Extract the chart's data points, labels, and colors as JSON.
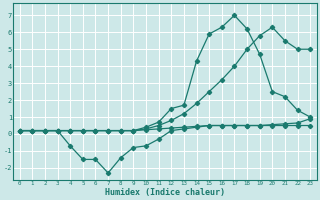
{
  "xlabel": "Humidex (Indice chaleur)",
  "bg_color": "#cde8e8",
  "grid_color": "#ffffff",
  "line_color": "#1a7a6e",
  "xlim": [
    -0.5,
    23.5
  ],
  "ylim": [
    -2.7,
    7.7
  ],
  "xticks": [
    0,
    1,
    2,
    3,
    4,
    5,
    6,
    7,
    8,
    9,
    10,
    11,
    12,
    13,
    14,
    15,
    16,
    17,
    18,
    19,
    20,
    21,
    22,
    23
  ],
  "yticks": [
    -2,
    -1,
    0,
    1,
    2,
    3,
    4,
    5,
    6,
    7
  ],
  "s1_x": [
    0,
    1,
    2,
    3,
    4,
    5,
    6,
    7,
    8,
    9,
    10,
    11,
    12,
    13,
    14,
    15,
    16,
    17,
    18,
    19,
    20,
    21,
    22,
    23
  ],
  "s1_y": [
    0.2,
    0.2,
    0.2,
    0.2,
    0.2,
    0.2,
    0.2,
    0.2,
    0.2,
    0.2,
    0.25,
    0.3,
    0.35,
    0.4,
    0.45,
    0.5,
    0.5,
    0.5,
    0.5,
    0.5,
    0.55,
    0.6,
    0.65,
    0.9
  ],
  "s2_x": [
    0,
    1,
    2,
    3,
    4,
    5,
    6,
    7,
    8,
    9,
    10,
    11,
    12,
    13,
    14,
    15,
    16,
    17,
    18,
    19,
    20,
    21,
    22,
    23
  ],
  "s2_y": [
    0.2,
    0.2,
    0.2,
    0.2,
    0.2,
    0.2,
    0.2,
    0.2,
    0.2,
    0.2,
    0.3,
    0.5,
    0.8,
    1.2,
    1.8,
    2.5,
    3.2,
    4.0,
    5.0,
    5.8,
    6.3,
    5.5,
    5.0,
    5.0
  ],
  "s3_x": [
    0,
    1,
    2,
    3,
    4,
    5,
    6,
    7,
    8,
    9,
    10,
    11,
    12,
    13,
    14,
    15,
    16,
    17,
    18,
    19,
    20,
    21,
    22,
    23
  ],
  "s3_y": [
    0.2,
    0.2,
    0.2,
    0.2,
    -0.7,
    -1.5,
    -1.5,
    -2.3,
    -1.4,
    -0.8,
    -0.7,
    -0.3,
    0.2,
    0.3,
    0.4,
    0.5,
    0.5,
    0.5,
    0.5,
    0.5,
    0.5,
    0.5,
    0.5,
    0.5
  ],
  "s4_x": [
    0,
    1,
    2,
    3,
    4,
    5,
    6,
    7,
    8,
    9,
    10,
    11,
    12,
    13,
    14,
    15,
    16,
    17,
    18,
    19,
    20,
    21,
    22,
    23
  ],
  "s4_y": [
    0.2,
    0.2,
    0.2,
    0.2,
    0.2,
    0.2,
    0.2,
    0.2,
    0.2,
    0.2,
    0.4,
    0.7,
    1.5,
    1.7,
    4.3,
    5.9,
    6.3,
    7.0,
    6.2,
    4.7,
    2.5,
    2.2,
    1.4,
    1.0
  ]
}
